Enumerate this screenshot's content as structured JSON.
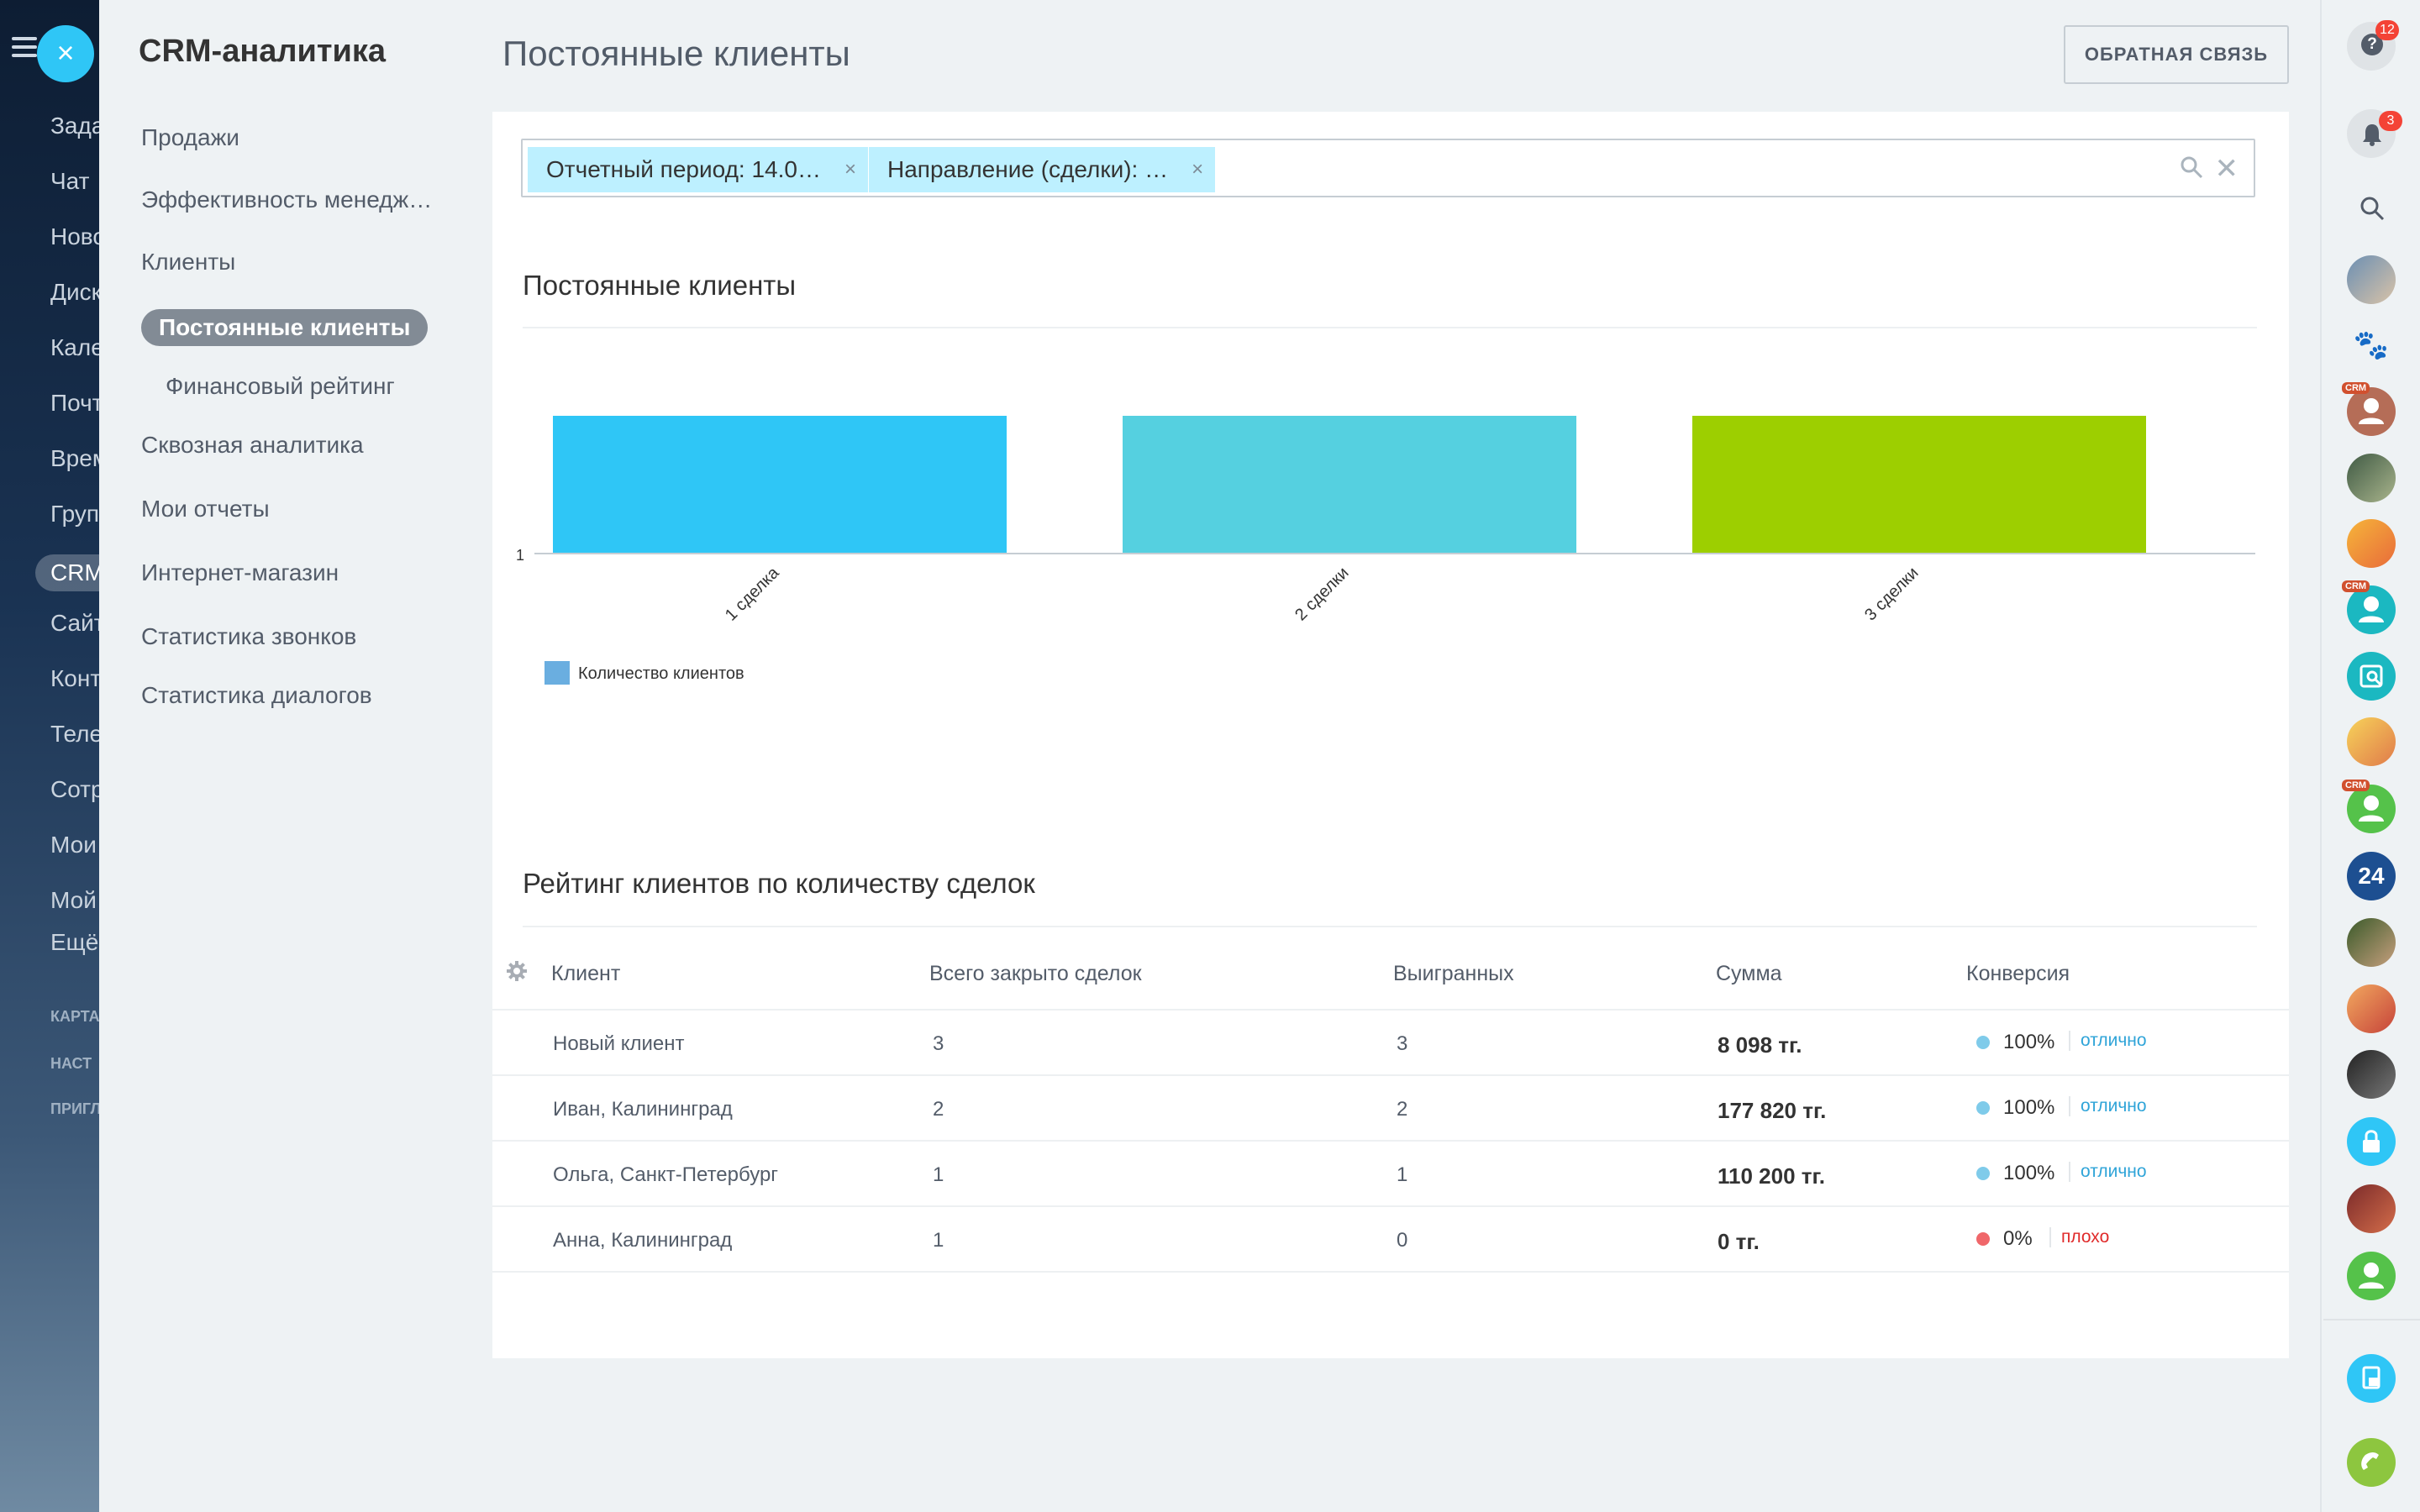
{
  "background_menu": {
    "items": [
      "Зада",
      "Чат",
      "Ново",
      "Диск",
      "Кале",
      "Почт",
      "Врем",
      "Груп",
      "CRM",
      "Сайт",
      "Конт",
      "Теле",
      "Сотр",
      "Мои",
      "Мой",
      "Ещё"
    ],
    "small_items": [
      "КАРТА",
      "НАСТ",
      "ПРИГЛ"
    ],
    "close_label": "×"
  },
  "side_nav": {
    "title": "CRM-аналитика",
    "items": [
      {
        "label": "Продажи"
      },
      {
        "label": "Эффективность менедж…"
      },
      {
        "label": "Клиенты"
      },
      {
        "label": "Постоянные клиенты",
        "active": true
      },
      {
        "label": "Финансовый рейтинг",
        "sub": true
      },
      {
        "label": "Сквозная аналитика"
      },
      {
        "label": "Мои отчеты"
      },
      {
        "label": "Интернет-магазин"
      },
      {
        "label": "Статистика звонков"
      },
      {
        "label": "Статистика диалогов"
      }
    ]
  },
  "header": {
    "title": "Постоянные клиенты",
    "feedback_label": "ОБРАТНАЯ СВЯЗЬ"
  },
  "filter": {
    "chips": [
      "Отчетный период: 14.0…",
      "Направление (сделки): …"
    ],
    "chip_remove": "×",
    "clear": "✕"
  },
  "chart_section": {
    "title": "Постоянные клиенты"
  },
  "chart_data": {
    "type": "bar",
    "title": "Постоянные клиенты",
    "categories": [
      "1 сделка",
      "2 сделки",
      "3 сделки"
    ],
    "series": [
      {
        "name": "Количество клиентов",
        "values": [
          1,
          1,
          1
        ]
      }
    ],
    "bar_colors": [
      "#2fc6f6",
      "#55d0e0",
      "#9dcf00"
    ],
    "legend_color": "#6aaee0",
    "ytick_labels": [
      "1"
    ],
    "legend": "bottom-left",
    "grid": false
  },
  "rating": {
    "title": "Рейтинг клиентов по количеству сделок",
    "columns": [
      "Клиент",
      "Всего закрыто сделок",
      "Выигранных",
      "Сумма",
      "Конверсия"
    ],
    "rows": [
      {
        "client": "Новый клиент",
        "closed": "3",
        "won": "3",
        "sum": "8 098 тг.",
        "conversion": "100%",
        "grade": "отлично",
        "status": "good"
      },
      {
        "client": "Иван, Калининград",
        "closed": "2",
        "won": "2",
        "sum": "177 820 тг.",
        "conversion": "100%",
        "grade": "отлично",
        "status": "good"
      },
      {
        "client": "Ольга, Санкт-Петербург",
        "closed": "1",
        "won": "1",
        "sum": "110 200 тг.",
        "conversion": "100%",
        "grade": "отлично",
        "status": "good"
      },
      {
        "client": "Анна, Калининград",
        "closed": "1",
        "won": "0",
        "sum": "0 тг.",
        "conversion": "0%",
        "grade": "плохо",
        "status": "bad"
      }
    ],
    "colors": {
      "good_dot": "#7fcbea",
      "good_text": "#2fa4d8",
      "bad_dot": "#f0676a",
      "bad_text": "#e02a2a"
    }
  },
  "right_bar": {
    "help_badge": "12",
    "notify_badge": "3",
    "crm_tag": "CRM",
    "b24_label": "24"
  }
}
